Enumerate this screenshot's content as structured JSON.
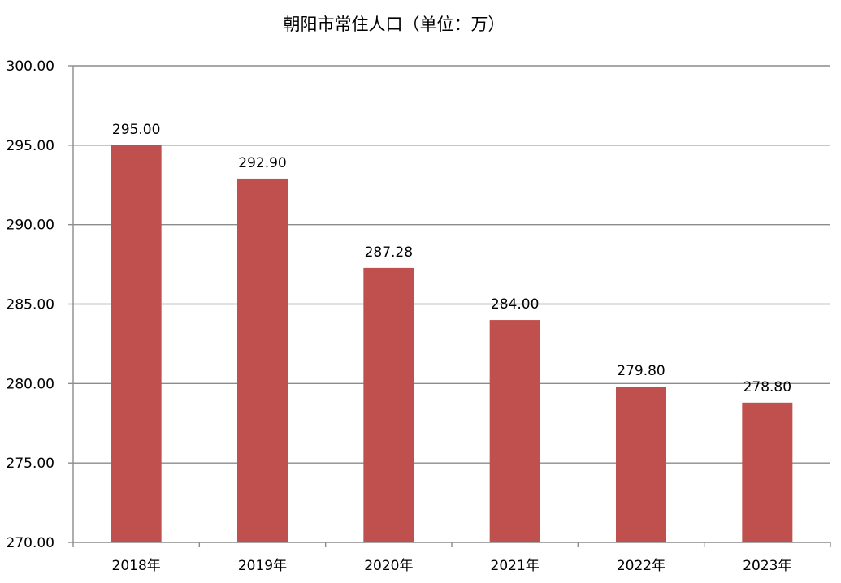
{
  "chart_data": {
    "type": "bar",
    "title": "朝阳市常住人口（单位：万）",
    "categories": [
      "2018年",
      "2019年",
      "2020年",
      "2021年",
      "2022年",
      "2023年"
    ],
    "series": [
      {
        "values": [
          295.0,
          292.9,
          287.28,
          284.0,
          279.8,
          278.8
        ],
        "data_labels": [
          "295.00",
          "292.90",
          "287.28",
          "284.00",
          "279.80",
          "278.80"
        ],
        "color": "#c0504d"
      }
    ],
    "y_ticks": [
      270,
      275,
      280,
      285,
      290,
      295,
      300
    ],
    "y_tick_labels": [
      "270.00",
      "275.00",
      "280.00",
      "285.00",
      "290.00",
      "295.00",
      "300.00"
    ],
    "ylim": [
      270,
      300
    ],
    "xlabel": "",
    "ylabel": "",
    "grid": true,
    "legend": "none",
    "colors": {
      "bar": "#c0504d",
      "grid": "#8c8c8c",
      "text": "#000000"
    }
  }
}
